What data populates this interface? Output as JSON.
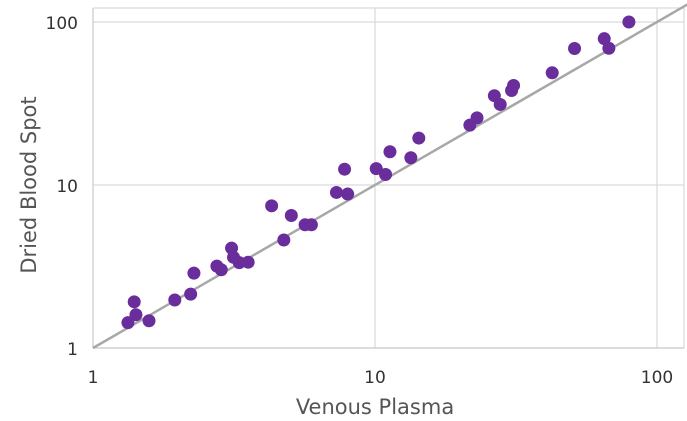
{
  "chart_data": {
    "type": "scatter",
    "xlabel": "Venous Plasma",
    "ylabel": "Dried Blood Spot",
    "x_scale": "log",
    "y_scale": "log",
    "xlim": [
      1,
      100
    ],
    "ylim": [
      1,
      100
    ],
    "x_ticks": [
      1,
      10,
      100
    ],
    "y_ticks": [
      1,
      10,
      100
    ],
    "x_tick_labels": [
      "1",
      "10",
      "100"
    ],
    "y_tick_labels": [
      "1",
      "10",
      "100"
    ],
    "grid": true,
    "legend": "none",
    "reference_line": "y = x",
    "points": [
      {
        "x": 1.33,
        "y": 1.43
      },
      {
        "x": 1.4,
        "y": 1.92
      },
      {
        "x": 1.42,
        "y": 1.6
      },
      {
        "x": 1.58,
        "y": 1.47
      },
      {
        "x": 1.95,
        "y": 1.97
      },
      {
        "x": 2.22,
        "y": 2.14
      },
      {
        "x": 2.28,
        "y": 2.88
      },
      {
        "x": 2.75,
        "y": 3.18
      },
      {
        "x": 2.85,
        "y": 3.02
      },
      {
        "x": 3.1,
        "y": 4.1
      },
      {
        "x": 3.15,
        "y": 3.6
      },
      {
        "x": 3.3,
        "y": 3.34
      },
      {
        "x": 3.55,
        "y": 3.36
      },
      {
        "x": 4.3,
        "y": 7.45
      },
      {
        "x": 4.75,
        "y": 4.6
      },
      {
        "x": 5.05,
        "y": 6.5
      },
      {
        "x": 5.65,
        "y": 5.7
      },
      {
        "x": 5.95,
        "y": 5.7
      },
      {
        "x": 7.3,
        "y": 9.0
      },
      {
        "x": 7.8,
        "y": 12.5
      },
      {
        "x": 8.0,
        "y": 8.8
      },
      {
        "x": 10.1,
        "y": 12.6
      },
      {
        "x": 10.9,
        "y": 11.6
      },
      {
        "x": 11.3,
        "y": 16.0
      },
      {
        "x": 13.4,
        "y": 14.7
      },
      {
        "x": 14.3,
        "y": 19.4
      },
      {
        "x": 21.7,
        "y": 23.3
      },
      {
        "x": 23.0,
        "y": 25.8
      },
      {
        "x": 26.5,
        "y": 35.3
      },
      {
        "x": 27.8,
        "y": 31.2
      },
      {
        "x": 30.5,
        "y": 38.0
      },
      {
        "x": 31.0,
        "y": 40.8
      },
      {
        "x": 42.5,
        "y": 48.8
      },
      {
        "x": 51.0,
        "y": 68.8
      },
      {
        "x": 65.0,
        "y": 79.0
      },
      {
        "x": 67.5,
        "y": 69.0
      },
      {
        "x": 79.5,
        "y": 100.0
      }
    ]
  },
  "colors": {
    "point": "#6a2d9c",
    "reference_line": "#a8a8a8",
    "grid": "#d9d9d9",
    "axis": "#c8c8c8"
  }
}
